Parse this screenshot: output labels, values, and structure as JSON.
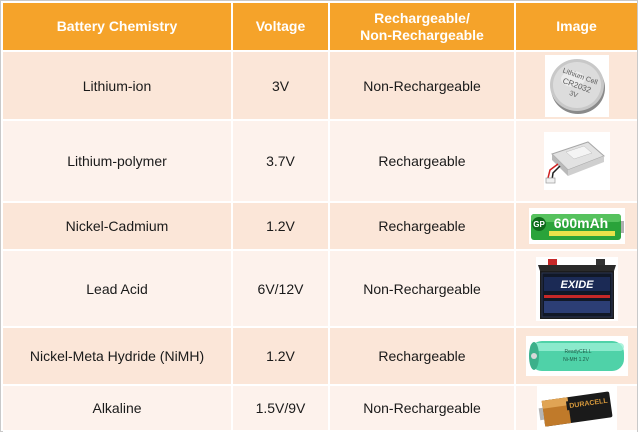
{
  "table": {
    "headers": [
      "Battery Chemistry",
      "Voltage",
      "Rechargeable/",
      "Non-Rechargeable",
      "Image"
    ],
    "rows": [
      {
        "chemistry": "Lithium-ion",
        "voltage": "3V",
        "type": "Non-Rechargeable",
        "image_icon": "coin-cell-battery-icon",
        "image_text": [
          "Lithium Cell",
          "CR2032",
          "3V"
        ]
      },
      {
        "chemistry": "Lithium-polymer",
        "voltage": "3.7V",
        "type": "Rechargeable",
        "image_icon": "lipo-pouch-battery-icon"
      },
      {
        "chemistry": "Nickel-Cadmium",
        "voltage": "1.2V",
        "type": "Rechargeable",
        "image_icon": "nicd-aa-battery-icon",
        "image_text": [
          "GP",
          "600mAh"
        ]
      },
      {
        "chemistry": "Lead Acid",
        "voltage": "6V/12V",
        "type": "Non-Rechargeable",
        "image_icon": "lead-acid-car-battery-icon",
        "image_text": [
          "EXIDE"
        ]
      },
      {
        "chemistry": "Nickel-Meta Hydride (NiMH)",
        "voltage": "1.2V",
        "type": "Rechargeable",
        "image_icon": "nimh-aa-battery-icon"
      },
      {
        "chemistry": "Alkaline",
        "voltage": "1.5V/9V",
        "type": "Non-Rechargeable",
        "image_icon": "alkaline-aa-battery-icon",
        "image_text": [
          "DURACELL"
        ]
      }
    ]
  },
  "colors": {
    "header_bg": "#f5a32a",
    "row_odd_bg": "#fbe6d8",
    "row_even_bg": "#fdf2ec",
    "grid_lines": "#ffffff"
  }
}
